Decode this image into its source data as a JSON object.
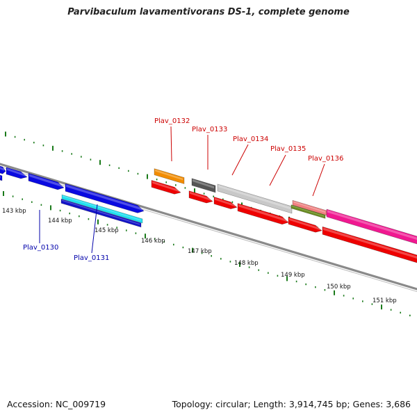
{
  "title": "Parvibaculum lavamentivorans DS-1, complete genome",
  "footer": {
    "accession": "Accession: NC_009719",
    "stats": "Topology: circular; Length: 3,914,745 bp; Genes: 3,686"
  },
  "colors": {
    "background": "#ffffff",
    "backbone": "#8a8a8a",
    "tick": "#1a7a1a",
    "label_red": "#cc0000",
    "label_blue": "#0000aa"
  },
  "kbp_labels": [
    "143 kbp",
    "144 kbp",
    "145 kbp",
    "146 kbp",
    "147 kbp",
    "148 kbp",
    "149 kbp",
    "150 kbp",
    "151 kbp"
  ],
  "gene_labels": [
    {
      "text": "Plav_0130",
      "color": "blue"
    },
    {
      "text": "Plav_0131",
      "color": "blue"
    },
    {
      "text": "Plav_0132",
      "color": "red"
    },
    {
      "text": "Plav_0133",
      "color": "red"
    },
    {
      "text": "Plav_0134",
      "color": "red"
    },
    {
      "text": "Plav_0135",
      "color": "red"
    },
    {
      "text": "Plav_0136",
      "color": "red"
    }
  ]
}
